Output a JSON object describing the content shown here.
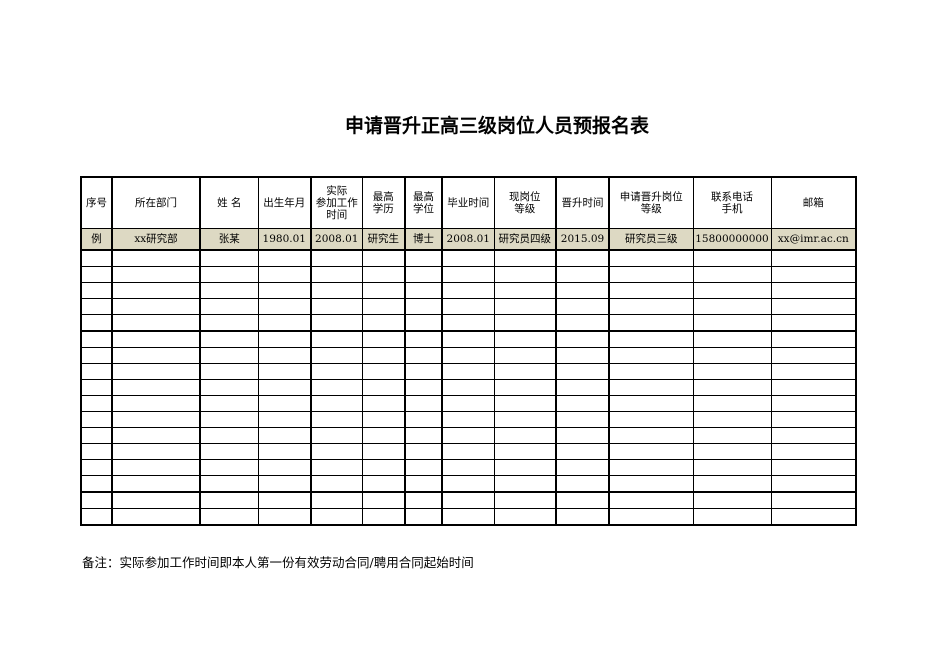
{
  "title": "申请晋升正高三级岗位人员预报名表",
  "columns": [
    "序号",
    "所在部门",
    "姓  名",
    "出生年月",
    "实际\n参加工作\n时间",
    "最高\n学历",
    "最高\n学位",
    "毕业时间",
    "现岗位\n等级",
    "晋升时间",
    "申请晋升岗位\n等级",
    "联系电话\n手机",
    "邮箱"
  ],
  "example_row": [
    "例",
    "xx研究部",
    "张某",
    "1980.01",
    "2008.01",
    "研究生",
    "博士",
    "2008.01",
    "研究员四级",
    "2015.09",
    "研究员三级",
    "15800000000",
    "xx@imr.ac.cn"
  ],
  "example_row_color": "#ddd9c3",
  "empty_row_count": 17,
  "note": "备注：实际参加工作时间即本人第一份有效劳动合同/聘用合同起始时间"
}
